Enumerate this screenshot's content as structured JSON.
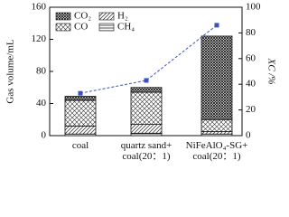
{
  "chart_data": {
    "type": "bar",
    "categories": [
      "coal",
      "quartz sand+\ncoal(20：1)",
      "NiFeAlO₄-SG+\ncoal(20：1)"
    ],
    "series": [
      {
        "name": "CH₄",
        "hatch": "horizontal",
        "values": [
          2,
          3,
          2
        ]
      },
      {
        "name": "H₂",
        "hatch": "diagonal",
        "values": [
          10,
          11,
          3
        ]
      },
      {
        "name": "CO",
        "hatch": "cross",
        "values": [
          32,
          40,
          15
        ]
      },
      {
        "name": "CO₂",
        "hatch": "cross-dense",
        "values": [
          5,
          6,
          104
        ]
      },
      {
        "name": "XC /%",
        "type": "line",
        "axis": "y2",
        "color": "#3a50c8",
        "values": [
          33,
          43,
          86
        ]
      }
    ],
    "legend_order": [
      3,
      1,
      2,
      0
    ],
    "ylabel": "Gas volume/mL",
    "y2label": "XC /%",
    "ylim": [
      0,
      160
    ],
    "yticks": [
      0,
      40,
      80,
      120,
      160
    ],
    "y2lim": [
      0,
      100
    ],
    "y2ticks": [
      0,
      20,
      40,
      60,
      80,
      100
    ]
  }
}
